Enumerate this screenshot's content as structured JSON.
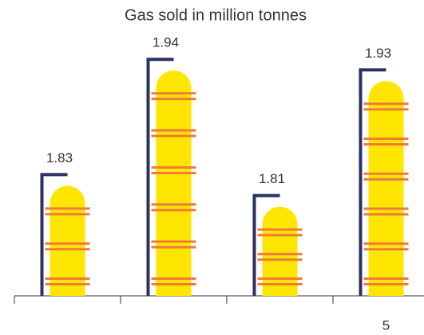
{
  "chart_data": {
    "type": "pictograph",
    "title": "Gas sold in million tonnes",
    "categories": [
      null,
      null,
      null,
      "5"
    ],
    "values": [
      1.83,
      1.94,
      1.81,
      1.93
    ],
    "color": "#ffe600",
    "ylim": [
      1.725,
      1.96
    ]
  }
}
